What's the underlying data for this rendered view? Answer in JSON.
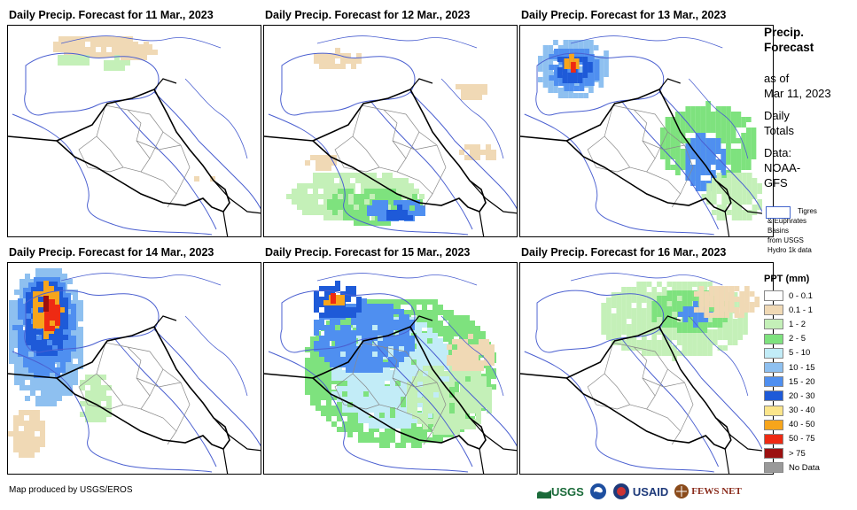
{
  "panels": [
    {
      "title": "Daily Precip. Forecast for 11 Mar., 2023"
    },
    {
      "title": "Daily Precip. Forecast for 12 Mar., 2023"
    },
    {
      "title": "Daily Precip. Forecast for 13 Mar., 2023"
    },
    {
      "title": "Daily Precip. Forecast for 14 Mar., 2023"
    },
    {
      "title": "Daily Precip. Forecast for 15 Mar., 2023"
    },
    {
      "title": "Daily Precip. Forecast for 16 Mar., 2023"
    }
  ],
  "sidebar": {
    "title_line1": "Precip.",
    "title_line2": "Forecast",
    "as_of_label": "as of",
    "as_of_date": "Mar 11, 2023",
    "daily_line1": "Daily",
    "daily_line2": "Totals",
    "data_line1": "Data:",
    "data_line2": "NOAA-",
    "data_line3": "GFS",
    "basin_line1": "Tigres",
    "basin_line2": "& Euphrates",
    "basin_line3": "Basins",
    "basin_line4": "from USGS",
    "basin_line5": "Hydro 1k data"
  },
  "legend": {
    "title": "PPT (mm)",
    "items": [
      {
        "label": "0 - 0.1",
        "color": "#ffffff"
      },
      {
        "label": "0.1 - 1",
        "color": "#f0d9b5"
      },
      {
        "label": "1 - 2",
        "color": "#c4f0b8"
      },
      {
        "label": "2 - 5",
        "color": "#7ee27e"
      },
      {
        "label": "5 - 10",
        "color": "#c2ecf7"
      },
      {
        "label": "10 - 15",
        "color": "#8ec0f0"
      },
      {
        "label": "15 - 20",
        "color": "#4f8ff0"
      },
      {
        "label": "20 - 30",
        "color": "#1e5ad8"
      },
      {
        "label": "30 - 40",
        "color": "#fbe58b"
      },
      {
        "label": "40 - 50",
        "color": "#f7a51c"
      },
      {
        "label": "50 - 75",
        "color": "#ee2a13"
      },
      {
        "label": "> 75",
        "color": "#9b1010"
      },
      {
        "label": "No Data",
        "color": "#999999"
      }
    ]
  },
  "footer": {
    "credit": "Map produced by USGS/EROS",
    "logo_usgs": "USGS",
    "logo_usaid": "USAID",
    "logo_fews": "FEWS NET"
  }
}
